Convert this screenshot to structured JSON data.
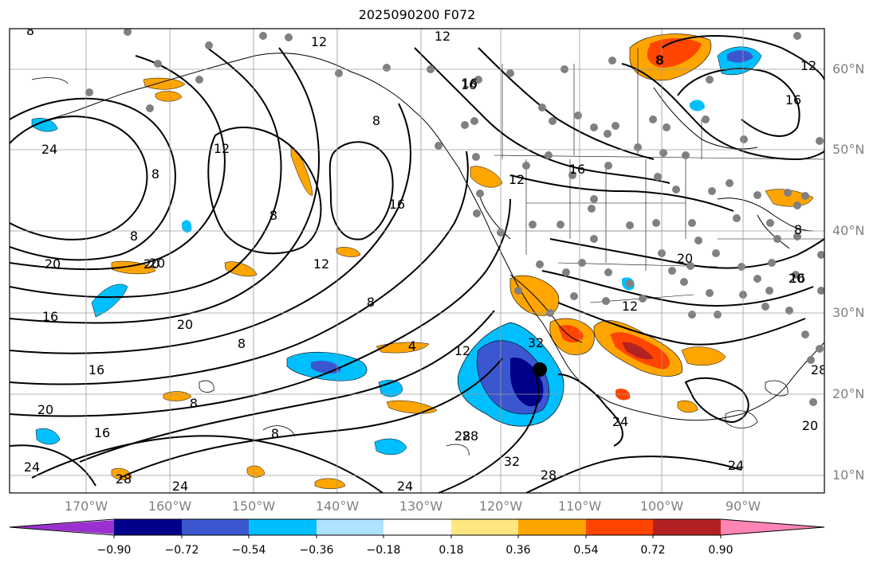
{
  "title": "2025090200 F072",
  "lon_labels": [
    "170°W",
    "160°W",
    "150°W",
    "140°W",
    "130°W",
    "120°W",
    "110°W",
    "100°W",
    "90°W"
  ],
  "lat_labels": [
    "60°N",
    "50°N",
    "40°N",
    "30°N",
    "20°N",
    "10°N"
  ],
  "colorbar": {
    "ticks": [
      "−0.90",
      "−0.72",
      "−0.54",
      "−0.36",
      "−0.18",
      "0.18",
      "0.36",
      "0.54",
      "0.72",
      "0.90"
    ],
    "colors": [
      "#9b30d0",
      "#00008b",
      "#3a57d0",
      "#00bfff",
      "#aee2ff",
      "#ffffff",
      "#ffe680",
      "#ffa500",
      "#ff4500",
      "#b22222",
      "#ff85b4"
    ]
  },
  "contour_labels": [
    {
      "text": "8"
    },
    {
      "text": "12"
    },
    {
      "text": "16"
    },
    {
      "text": "24"
    },
    {
      "text": "8"
    },
    {
      "text": "12"
    },
    {
      "text": "8"
    },
    {
      "text": "16"
    },
    {
      "text": "8"
    },
    {
      "text": "20"
    },
    {
      "text": "8"
    },
    {
      "text": "12"
    },
    {
      "text": "20"
    },
    {
      "text": "16"
    },
    {
      "text": "8"
    },
    {
      "text": "4"
    },
    {
      "text": "20"
    },
    {
      "text": "16"
    },
    {
      "text": "8"
    },
    {
      "text": "12"
    },
    {
      "text": "28"
    },
    {
      "text": "32"
    },
    {
      "text": "28"
    },
    {
      "text": "24"
    },
    {
      "text": "16"
    },
    {
      "text": "20"
    },
    {
      "text": "24"
    },
    {
      "text": "28"
    },
    {
      "text": "24"
    },
    {
      "text": "8"
    },
    {
      "text": "12"
    },
    {
      "text": "8"
    },
    {
      "text": "12"
    },
    {
      "text": "16"
    },
    {
      "text": "16"
    },
    {
      "text": "20"
    },
    {
      "text": "16"
    },
    {
      "text": "12"
    },
    {
      "text": "8"
    },
    {
      "text": "20"
    },
    {
      "text": "24"
    },
    {
      "text": "28"
    },
    {
      "text": "32"
    },
    {
      "text": "8"
    },
    {
      "text": "12"
    },
    {
      "text": "8"
    },
    {
      "text": "20"
    },
    {
      "text": "4"
    },
    {
      "text": "16"
    },
    {
      "text": "28"
    },
    {
      "text": "20"
    },
    {
      "text": "24"
    }
  ]
}
